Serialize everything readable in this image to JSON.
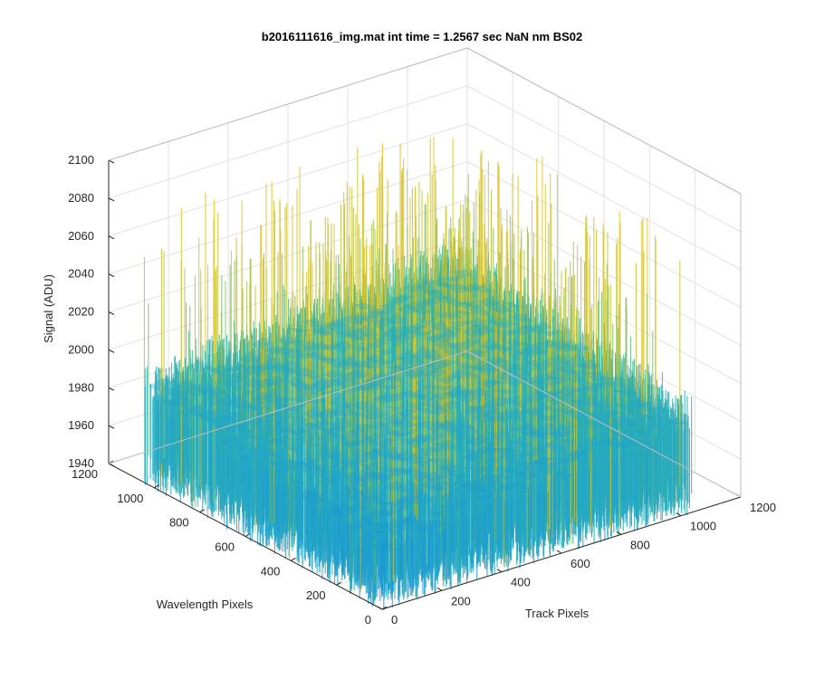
{
  "chart_data": {
    "type": "surface",
    "title": "b2016111616_img.mat int time = 1.2567 sec  NaN nm BS02",
    "xlabel": "Track Pixels",
    "ylabel": "Wavelength Pixels",
    "zlabel": "Signal (ADU)",
    "xlim": [
      0,
      1200
    ],
    "ylim": [
      0,
      1200
    ],
    "zlim": [
      1940,
      2100
    ],
    "x_data_range": [
      0,
      1024
    ],
    "y_data_range": [
      0,
      1024
    ],
    "x_ticks": [
      "0",
      "200",
      "400",
      "600",
      "800",
      "1000",
      "1200"
    ],
    "y_ticks": [
      "0",
      "200",
      "400",
      "600",
      "800",
      "1000",
      "1200"
    ],
    "z_ticks": [
      "1940",
      "1960",
      "1980",
      "2000",
      "2020",
      "2040",
      "2060",
      "2080",
      "2100"
    ],
    "grid": true,
    "colormap": "parula",
    "colormap_colors": [
      "#0072bd",
      "#1a8fd6",
      "#22a7c8",
      "#38b5a0",
      "#7cbf6f",
      "#c2c43d",
      "#e7c527"
    ],
    "surface_level_typical": 1975,
    "surface_level_peak": 2090,
    "surface_level_min": 1940,
    "box": true
  }
}
